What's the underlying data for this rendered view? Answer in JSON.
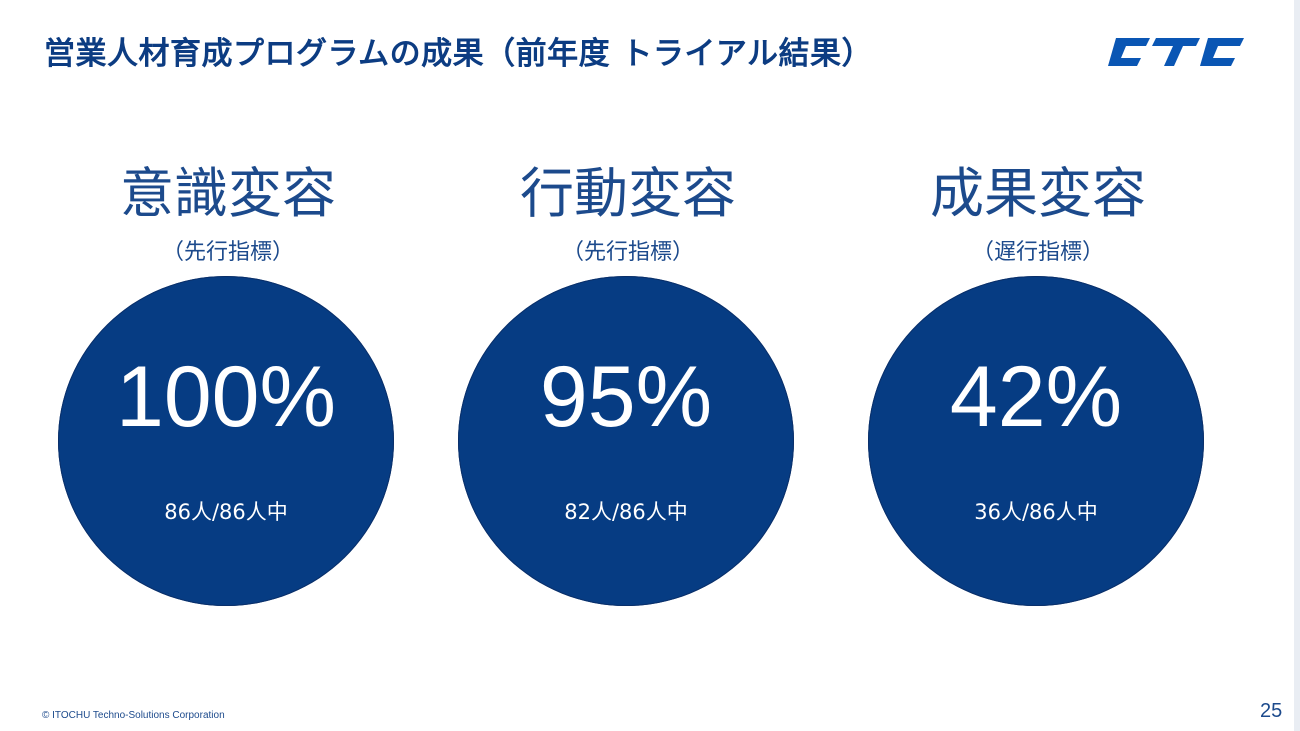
{
  "slide": {
    "title": "営業人材育成プログラムの成果（前年度 トライアル結果）",
    "logo_text": "CTC",
    "brand_color": "#0c3c82",
    "circle_color": "#063c83",
    "metrics": [
      {
        "label": "意識変容",
        "sublabel": "（先行指標）",
        "percent": "100%",
        "ratio": "86人/86人中"
      },
      {
        "label": "行動変容",
        "sublabel": "（先行指標）",
        "percent": "95%",
        "ratio": "82人/86人中"
      },
      {
        "label": "成果変容",
        "sublabel": "（遅行指標）",
        "percent": "42%",
        "ratio": "36人/86人中"
      }
    ],
    "copyright": "© ITOCHU Techno-Solutions Corporation",
    "page_number": "25"
  }
}
